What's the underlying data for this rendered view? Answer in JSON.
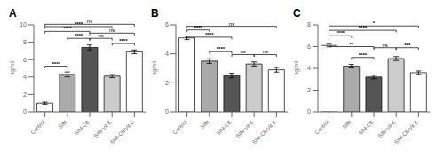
{
  "chart_data": [
    {
      "type": "bar",
      "title": "A",
      "ylabel": "ng/ml",
      "categories": [
        "Control",
        "SIM",
        "SIM-CB",
        "SIM-Vit E",
        "SIM-CB/Vit E"
      ],
      "values": [
        1.0,
        4.3,
        7.4,
        4.1,
        6.9
      ],
      "errors": [
        0.12,
        0.28,
        0.28,
        0.18,
        0.22
      ],
      "colors": [
        "white",
        "#aaaaaa",
        "#555555",
        "#cccccc",
        "white"
      ],
      "ylim": [
        0,
        10
      ],
      "yticks": [
        0,
        2,
        4,
        6,
        8,
        10
      ],
      "grid": false,
      "annotations": [
        {
          "text": "****",
          "from": "Control",
          "to": "SIM",
          "y": 5.0
        },
        {
          "text": "****",
          "from": "SIM",
          "to": "SIM-CB",
          "y": 8.2
        },
        {
          "text": "ns",
          "from": "SIM-CB",
          "to": "SIM-Vit E",
          "y": 8.2
        },
        {
          "text": "****",
          "from": "SIM-Vit E",
          "to": "SIM-CB/Vit E",
          "y": 7.6
        },
        {
          "text": "****",
          "from": "Control",
          "to": "SIM-CB",
          "y": 9.0
        },
        {
          "text": "****",
          "from": "Control",
          "to": "SIM-Vit E",
          "y": 9.55
        },
        {
          "text": "ns",
          "from": "Control",
          "to": "SIM-CB/Vit E",
          "y": 9.82
        },
        {
          "text": "ns",
          "from": "SIM-CB",
          "to": "SIM-CB/Vit E",
          "y": 8.8
        }
      ]
    },
    {
      "type": "bar",
      "title": "B",
      "ylabel": "ng/ml",
      "categories": [
        "Control",
        "SIM",
        "SIM-CB",
        "SIM-Vit E",
        "SIM-CB/Vit E"
      ],
      "values": [
        5.1,
        3.5,
        2.5,
        3.3,
        2.9
      ],
      "errors": [
        0.12,
        0.16,
        0.16,
        0.14,
        0.16
      ],
      "colors": [
        "white",
        "#aaaaaa",
        "#555555",
        "#cccccc",
        "white"
      ],
      "ylim": [
        0,
        6
      ],
      "yticks": [
        0,
        2,
        4,
        6
      ],
      "grid": false,
      "annotations": [
        {
          "text": "****",
          "from": "Control",
          "to": "SIM",
          "y": 5.5
        },
        {
          "text": "****",
          "from": "Control",
          "to": "SIM-CB",
          "y": 5.0
        },
        {
          "text": "****",
          "from": "SIM",
          "to": "SIM-CB",
          "y": 4.0
        },
        {
          "text": "ns",
          "from": "SIM-CB",
          "to": "SIM-Vit E",
          "y": 3.8
        },
        {
          "text": "ns",
          "from": "SIM-Vit E",
          "to": "SIM-CB/Vit E",
          "y": 3.8
        },
        {
          "text": "ns",
          "from": "Control",
          "to": "SIM-CB/Vit E",
          "y": 5.75
        }
      ]
    },
    {
      "type": "bar",
      "title": "C",
      "ylabel": "ng/ml",
      "categories": [
        "Control",
        "SIM",
        "SIM-CB",
        "SIM-Vit E",
        "SIM-CB/Vit E"
      ],
      "values": [
        6.1,
        4.2,
        3.2,
        4.9,
        3.6
      ],
      "errors": [
        0.12,
        0.16,
        0.16,
        0.18,
        0.16
      ],
      "colors": [
        "white",
        "#aaaaaa",
        "#555555",
        "#cccccc",
        "white"
      ],
      "ylim": [
        0,
        8
      ],
      "yticks": [
        0,
        2,
        4,
        6,
        8
      ],
      "grid": false,
      "annotations": [
        {
          "text": "****",
          "from": "Control",
          "to": "SIM",
          "y": 6.8
        },
        {
          "text": "**",
          "from": "Control",
          "to": "SIM-CB",
          "y": 5.8
        },
        {
          "text": "****",
          "from": "SIM",
          "to": "SIM-CB",
          "y": 4.8
        },
        {
          "text": "ns",
          "from": "SIM-CB",
          "to": "SIM-Vit E",
          "y": 5.7
        },
        {
          "text": "***",
          "from": "SIM-Vit E",
          "to": "SIM-CB/Vit E",
          "y": 5.7
        },
        {
          "text": "****",
          "from": "Control",
          "to": "SIM-Vit E",
          "y": 7.3
        },
        {
          "text": "*",
          "from": "Control",
          "to": "SIM-CB/Vit E",
          "y": 7.7
        }
      ]
    }
  ]
}
